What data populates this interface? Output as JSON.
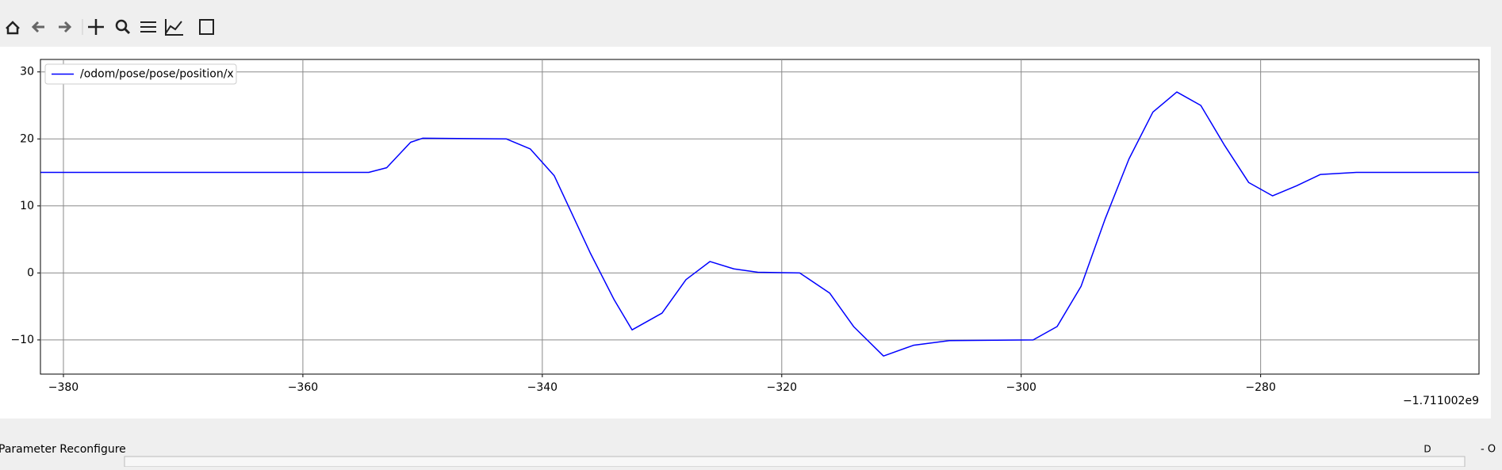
{
  "chart_data": {
    "type": "line",
    "x": [
      -381.9,
      -354.5,
      -353,
      -351,
      -350,
      -343,
      -341,
      -339,
      -336,
      -334,
      -332.5,
      -330,
      -328,
      -326,
      -324,
      -322,
      -318.5,
      -316,
      -314,
      -311.5,
      -309,
      -306,
      -299,
      -297,
      -295,
      -293,
      -291,
      -289,
      -287,
      -285,
      -283,
      -281,
      -279,
      -277,
      -275,
      -272,
      -261.8
    ],
    "series": [
      {
        "name": "/odom/pose/pose/position/x",
        "color": "#0000ff",
        "values": [
          15,
          15,
          15.7,
          19.5,
          20.1,
          20,
          18.5,
          14.5,
          3,
          -4,
          -8.5,
          -6,
          -1,
          1.7,
          0.6,
          0.1,
          0,
          -3,
          -8,
          -12.4,
          -10.8,
          -10.1,
          -10,
          -8,
          -2,
          8,
          17,
          24,
          27,
          25,
          19,
          13.5,
          11.5,
          13,
          14.7,
          15,
          15
        ]
      }
    ],
    "xlim": [
      -381.92,
      -261.76
    ],
    "ylim": [
      -15.1,
      31.86
    ],
    "xticks": [
      {
        "value": -380,
        "label": "−380"
      },
      {
        "value": -360,
        "label": "−360"
      },
      {
        "value": -340,
        "label": "−340"
      },
      {
        "value": -320,
        "label": "−320"
      },
      {
        "value": -300,
        "label": "−300"
      },
      {
        "value": -280,
        "label": "−280"
      }
    ],
    "yticks": [
      {
        "value": -10,
        "label": "−10"
      },
      0,
      10,
      20,
      30
    ],
    "x_offset_label": "−1.711002e9",
    "grid": true,
    "legend": "upper left"
  },
  "panel": {
    "title": "Parameter Reconfigure",
    "d_button": "D",
    "window_controls": "- O"
  }
}
